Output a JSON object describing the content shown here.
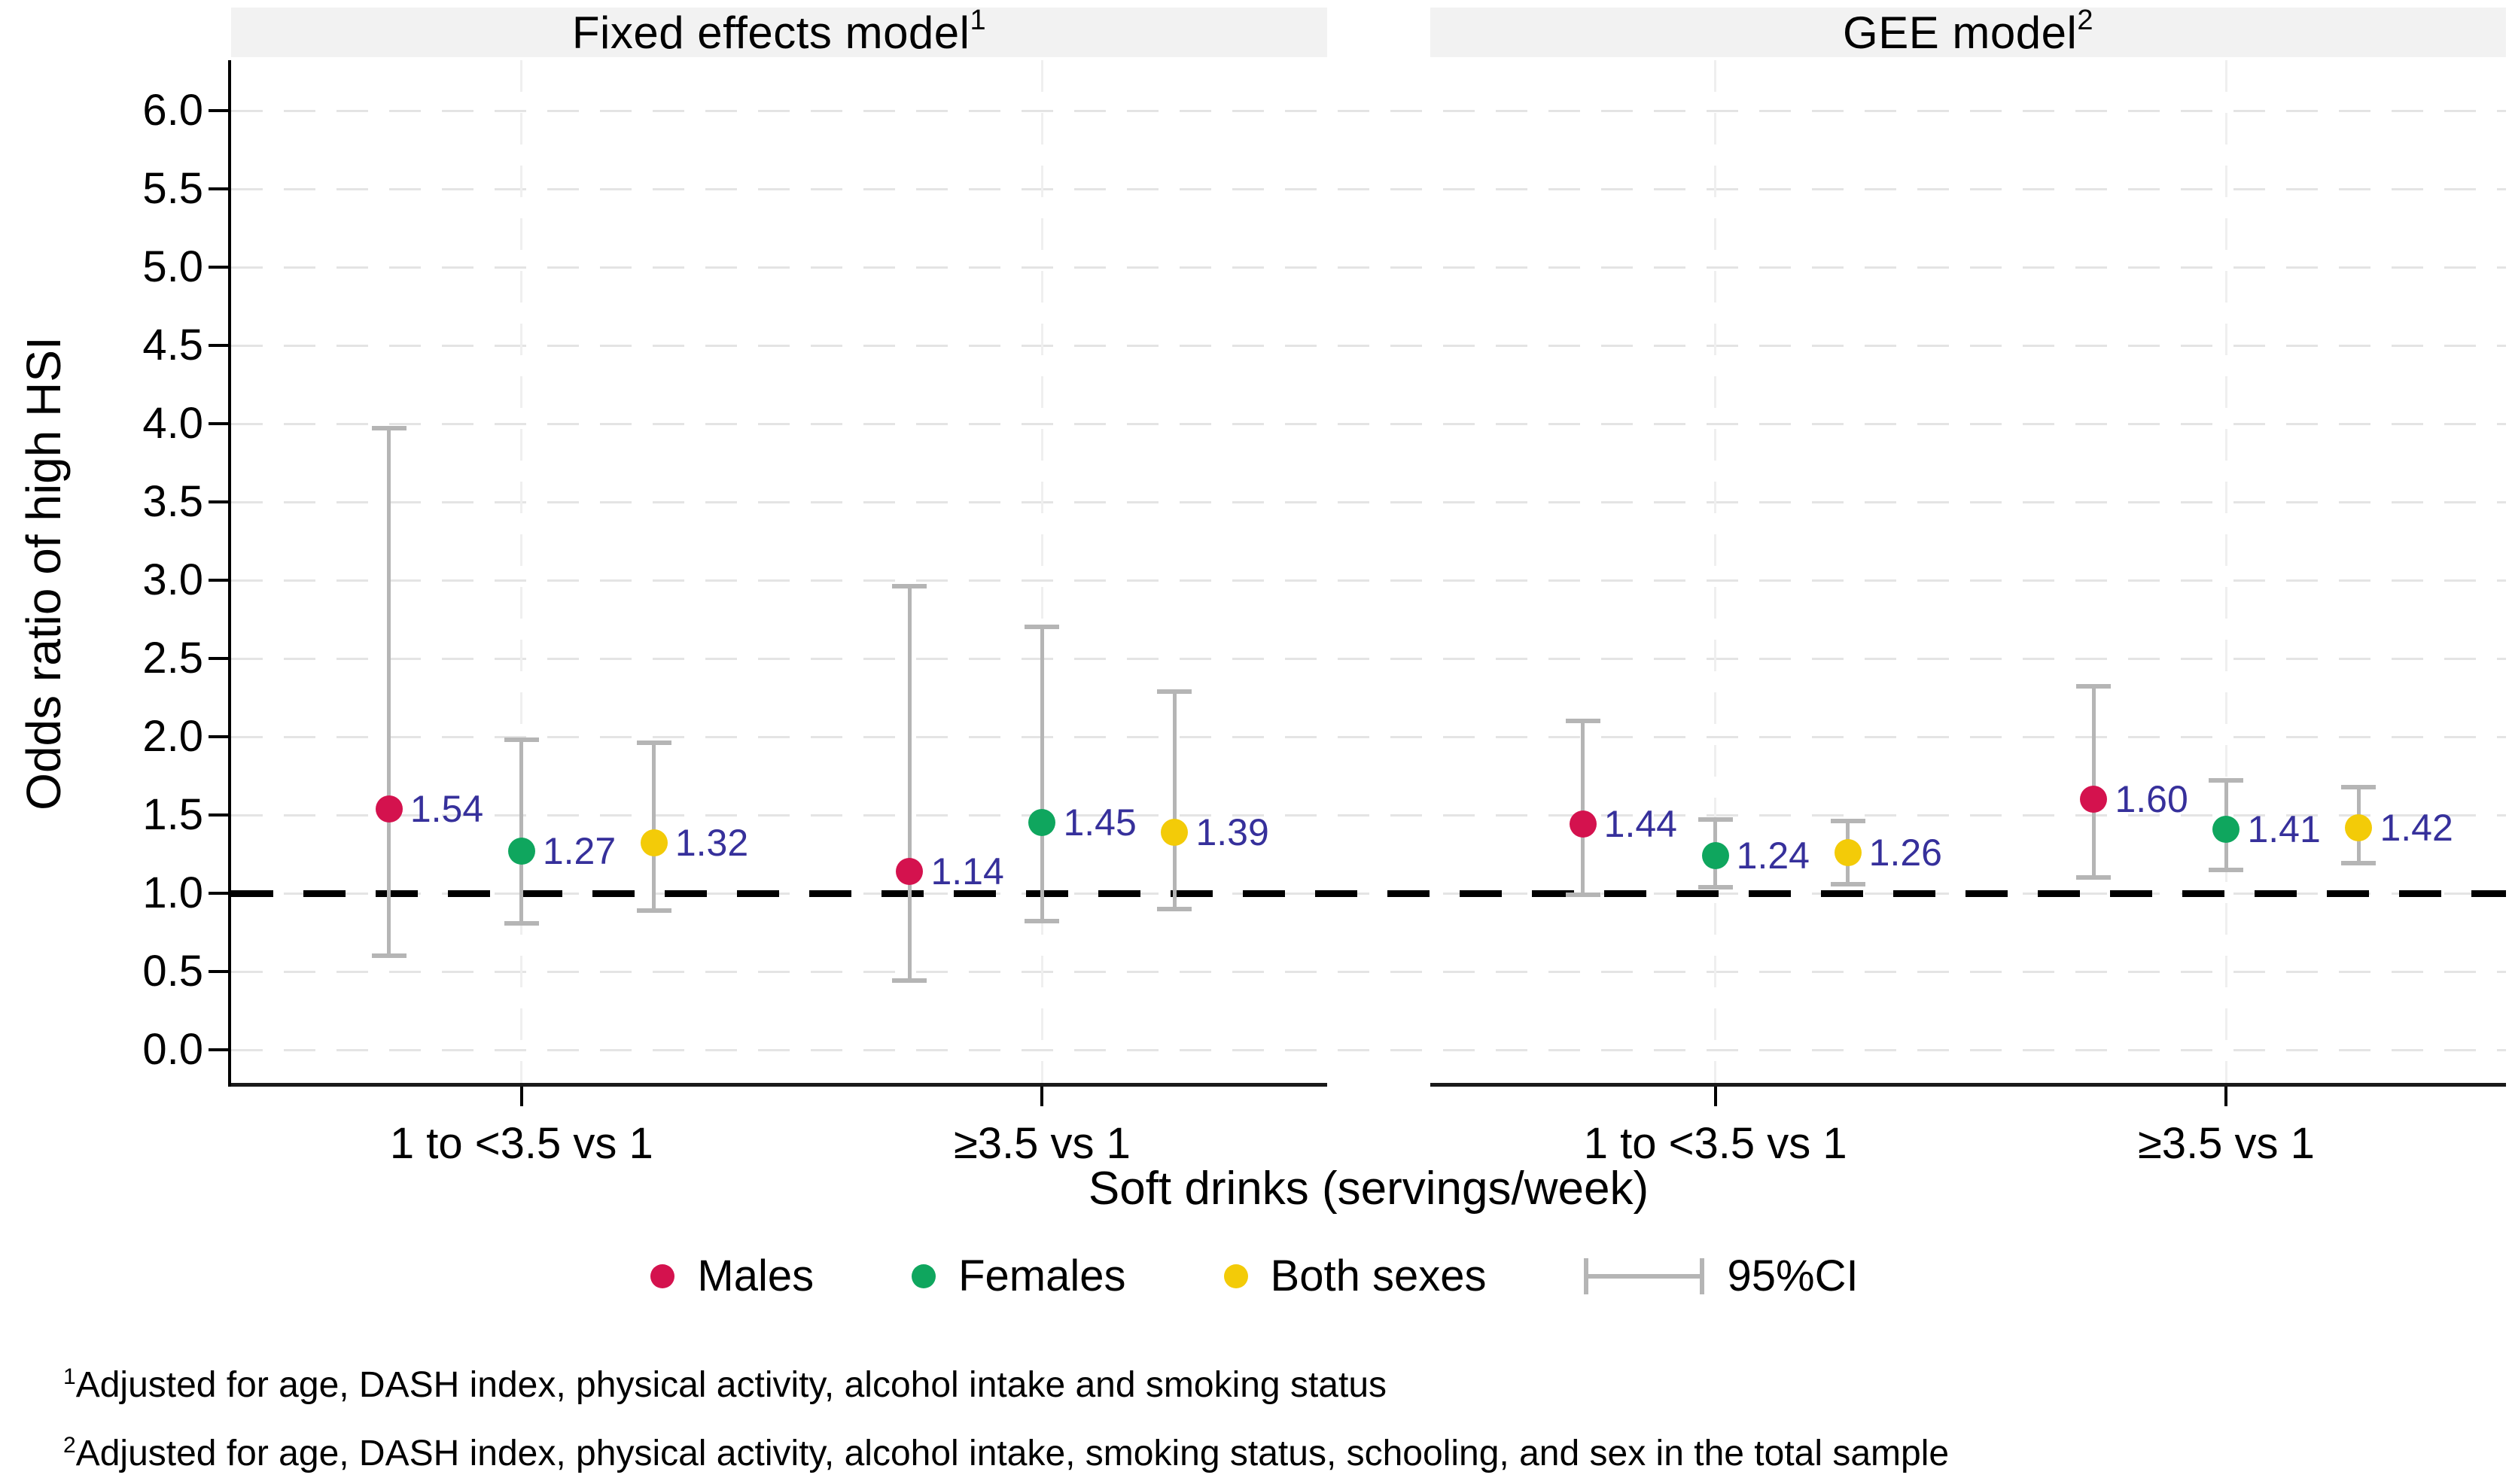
{
  "chart_data": {
    "type": "scatter",
    "subtype": "forest-plot-with-error-bars",
    "ylabel": "Odds ratio of high HSI",
    "xlabel": "Soft drinks (servings/week)",
    "ylim": [
      0,
      6
    ],
    "y_ticks": [
      "0.0",
      "0.5",
      "1.0",
      "1.5",
      "2.0",
      "2.5",
      "3.0",
      "3.5",
      "4.0",
      "4.5",
      "5.0",
      "5.5",
      "6.0"
    ],
    "reference_line_y": 1.0,
    "grid": "dashed-horizontal-and-vertical",
    "categories": [
      "1 to <3.5 vs 1",
      "≥3.5 vs 1"
    ],
    "series": [
      {
        "name": "Males",
        "color": "#d4124e"
      },
      {
        "name": "Females",
        "color": "#0fa65e"
      },
      {
        "name": "Both sexes",
        "color": "#f3cb08"
      }
    ],
    "ci_legend_label": "95%CI",
    "ci_color": "#b5b5b5",
    "value_label_color": "#36309b",
    "panels": [
      {
        "title": "Fixed effects model",
        "title_superscript": "1",
        "groups": [
          {
            "category": "1 to <3.5 vs 1",
            "points": [
              {
                "series": "Males",
                "or": 1.54,
                "label": "1.54",
                "ci_low": 0.6,
                "ci_high": 3.97
              },
              {
                "series": "Females",
                "or": 1.27,
                "label": "1.27",
                "ci_low": 0.81,
                "ci_high": 1.98
              },
              {
                "series": "Both sexes",
                "or": 1.32,
                "label": "1.32",
                "ci_low": 0.89,
                "ci_high": 1.96
              }
            ]
          },
          {
            "category": "≥3.5 vs 1",
            "points": [
              {
                "series": "Males",
                "or": 1.14,
                "label": "1.14",
                "ci_low": 0.44,
                "ci_high": 2.96
              },
              {
                "series": "Females",
                "or": 1.45,
                "label": "1.45",
                "ci_low": 0.82,
                "ci_high": 2.7
              },
              {
                "series": "Both sexes",
                "or": 1.39,
                "label": "1.39",
                "ci_low": 0.9,
                "ci_high": 2.29
              }
            ]
          }
        ]
      },
      {
        "title": "GEE model",
        "title_superscript": "2",
        "groups": [
          {
            "category": "1 to <3.5 vs 1",
            "points": [
              {
                "series": "Males",
                "or": 1.44,
                "label": "1.44",
                "ci_low": 0.99,
                "ci_high": 2.1
              },
              {
                "series": "Females",
                "or": 1.24,
                "label": "1.24",
                "ci_low": 1.04,
                "ci_high": 1.47
              },
              {
                "series": "Both sexes",
                "or": 1.26,
                "label": "1.26",
                "ci_low": 1.06,
                "ci_high": 1.46
              }
            ]
          },
          {
            "category": "≥3.5 vs 1",
            "points": [
              {
                "series": "Males",
                "or": 1.6,
                "label": "1.60",
                "ci_low": 1.1,
                "ci_high": 2.32
              },
              {
                "series": "Females",
                "or": 1.41,
                "label": "1.41",
                "ci_low": 1.15,
                "ci_high": 1.72
              },
              {
                "series": "Both sexes",
                "or": 1.42,
                "label": "1.42",
                "ci_low": 1.19,
                "ci_high": 1.68
              }
            ]
          }
        ]
      }
    ],
    "footnotes": [
      {
        "superscript": "1",
        "text": "Adjusted for age, DASH index, physical activity, alcohol intake and smoking status"
      },
      {
        "superscript": "2",
        "text": "Adjusted for age, DASH index, physical activity, alcohol intake, smoking status, schooling, and sex in the total sample"
      }
    ]
  }
}
